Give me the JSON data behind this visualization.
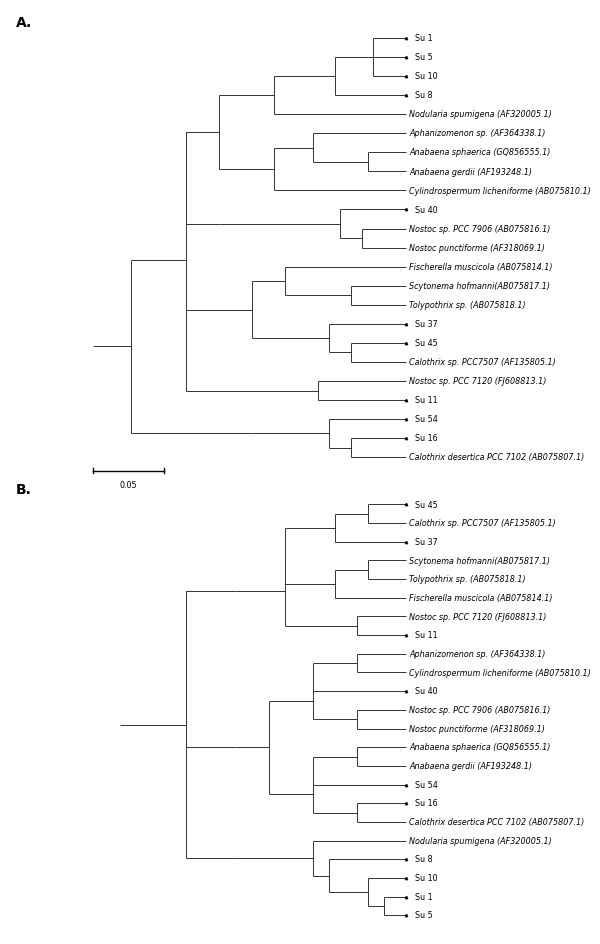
{
  "figure_width": 5.56,
  "figure_height": 9.34,
  "bg_color": "#ffffff",
  "text_color": "#000000",
  "line_color": "#333333",
  "leaf_fontsize": 5.8,
  "label_fontsize": 10,
  "triangle_size": 4.0,
  "tree_A": {
    "label": "A.",
    "leaves": [
      {
        "name": "Su 1",
        "is_isolate": true,
        "y": 22
      },
      {
        "name": "Su 5",
        "is_isolate": true,
        "y": 21
      },
      {
        "name": "Su 10",
        "is_isolate": true,
        "y": 20
      },
      {
        "name": "Su 8",
        "is_isolate": true,
        "y": 19
      },
      {
        "name": "Nodularia spumigena (AF320005.1)",
        "is_isolate": false,
        "y": 18
      },
      {
        "name": "Aphanizomenon sp. (AF364338.1)",
        "is_isolate": false,
        "y": 17
      },
      {
        "name": "Anabaena sphaerica (GQ856555.1)",
        "is_isolate": false,
        "y": 16
      },
      {
        "name": "Anabaena gerdii (AF193248.1)",
        "is_isolate": false,
        "y": 15
      },
      {
        "name": "Cylindrospermum licheniforme (AB075810.1)",
        "is_isolate": false,
        "y": 14
      },
      {
        "name": "Su 40",
        "is_isolate": true,
        "y": 13
      },
      {
        "name": "Nostoc sp. PCC 7906 (AB075816.1)",
        "is_isolate": false,
        "y": 12
      },
      {
        "name": "Nostoc punctiforme (AF318069.1)",
        "is_isolate": false,
        "y": 11
      },
      {
        "name": "Fischerella muscicola (AB075814.1)",
        "is_isolate": false,
        "y": 10
      },
      {
        "name": "Scytonema hofmanni(AB075817.1)",
        "is_isolate": false,
        "y": 9
      },
      {
        "name": "Tolypothrix sp. (AB075818.1)",
        "is_isolate": false,
        "y": 8
      },
      {
        "name": "Su 37",
        "is_isolate": true,
        "y": 7
      },
      {
        "name": "Su 45",
        "is_isolate": true,
        "y": 6
      },
      {
        "name": "Calothrix sp. PCC7507 (AF135805.1)",
        "is_isolate": false,
        "y": 5
      },
      {
        "name": "Nostoc sp. PCC 7120 (FJ608813.1)",
        "is_isolate": false,
        "y": 4
      },
      {
        "name": "Su 11",
        "is_isolate": true,
        "y": 3
      },
      {
        "name": "Su 54",
        "is_isolate": true,
        "y": 2
      },
      {
        "name": "Su 16",
        "is_isolate": true,
        "y": 1
      },
      {
        "name": "Calothrix desertica PCC 7102 (AB075807.1)",
        "is_isolate": false,
        "y": 0
      }
    ]
  },
  "tree_B": {
    "label": "B.",
    "leaves": [
      {
        "name": "Su 45",
        "is_isolate": true,
        "y": 22
      },
      {
        "name": "Calothrix sp. PCC7507 (AF135805.1)",
        "is_isolate": false,
        "y": 21
      },
      {
        "name": "Su 37",
        "is_isolate": true,
        "y": 20
      },
      {
        "name": "Scytonema hofmanni(AB075817.1)",
        "is_isolate": false,
        "y": 19
      },
      {
        "name": "Tolypothrix sp. (AB075818.1)",
        "is_isolate": false,
        "y": 18
      },
      {
        "name": "Fischerella muscicola (AB075814.1)",
        "is_isolate": false,
        "y": 17
      },
      {
        "name": "Nostoc sp. PCC 7120 (FJ608813.1)",
        "is_isolate": false,
        "y": 16
      },
      {
        "name": "Su 11",
        "is_isolate": true,
        "y": 15
      },
      {
        "name": "Aphanizomenon sp. (AF364338.1)",
        "is_isolate": false,
        "y": 14
      },
      {
        "name": "Cylindrospermum licheniforme (AB075810.1)",
        "is_isolate": false,
        "y": 13
      },
      {
        "name": "Su 40",
        "is_isolate": true,
        "y": 12
      },
      {
        "name": "Nostoc sp. PCC 7906 (AB075816.1)",
        "is_isolate": false,
        "y": 11
      },
      {
        "name": "Nostoc punctiforme (AF318069.1)",
        "is_isolate": false,
        "y": 10
      },
      {
        "name": "Anabaena sphaerica (GQ856555.1)",
        "is_isolate": false,
        "y": 9
      },
      {
        "name": "Anabaena gerdii (AF193248.1)",
        "is_isolate": false,
        "y": 8
      },
      {
        "name": "Su 54",
        "is_isolate": true,
        "y": 7
      },
      {
        "name": "Su 16",
        "is_isolate": true,
        "y": 6
      },
      {
        "name": "Calothrix desertica PCC 7102 (AB075807.1)",
        "is_isolate": false,
        "y": 5
      },
      {
        "name": "Nodularia spumigena (AF320005.1)",
        "is_isolate": false,
        "y": 4
      },
      {
        "name": "Su 8",
        "is_isolate": true,
        "y": 3
      },
      {
        "name": "Su 10",
        "is_isolate": true,
        "y": 2
      },
      {
        "name": "Su 1",
        "is_isolate": true,
        "y": 1
      },
      {
        "name": "Su 5",
        "is_isolate": true,
        "y": 0
      }
    ]
  }
}
